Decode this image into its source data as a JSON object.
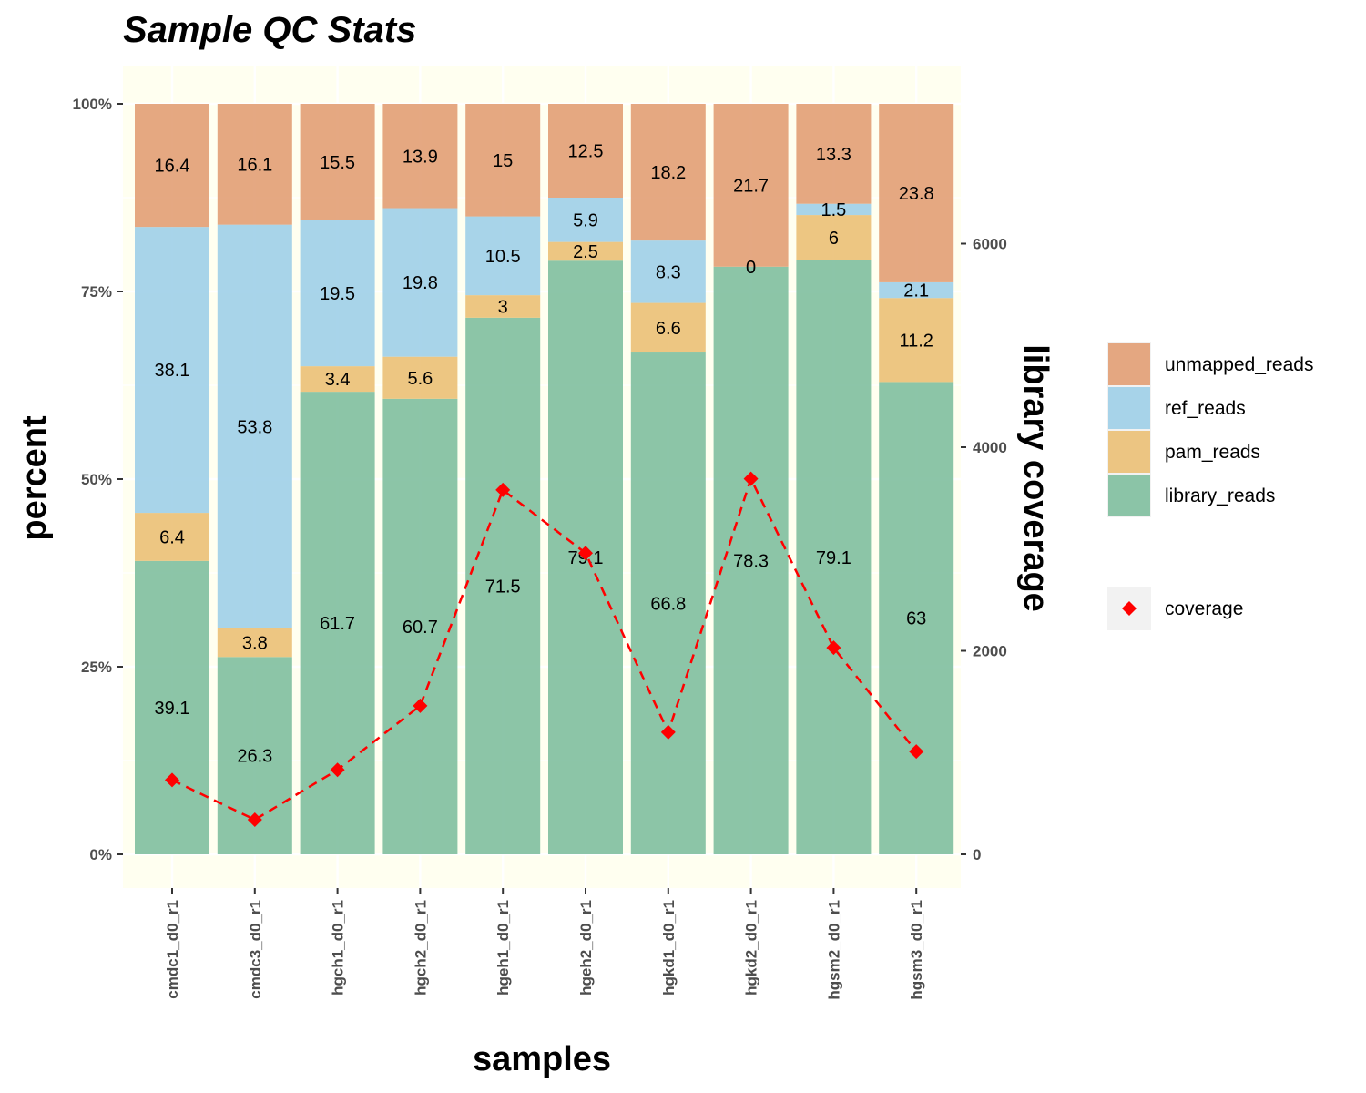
{
  "chart_data": {
    "type": "bar",
    "stacked": true,
    "title": "Sample QC Stats",
    "xlabel": "samples",
    "ylabel": "percent",
    "y2label": "library coverage",
    "ylim": [
      0,
      100
    ],
    "y_ticks": [
      0,
      25,
      50,
      75,
      100
    ],
    "y_tick_labels": [
      "0%",
      "25%",
      "50%",
      "75%",
      "100%"
    ],
    "y2lim": [
      0,
      6800
    ],
    "y2_ticks": [
      0,
      2000,
      4000,
      6000
    ],
    "y2_tick_labels": [
      "0",
      "2000",
      "4000",
      "6000"
    ],
    "panel_background": "#fffff0",
    "categories": [
      "cmdc1_d0_r1",
      "cmdc3_d0_r1",
      "hgch1_d0_r1",
      "hgch2_d0_r1",
      "hgeh1_d0_r1",
      "hgeh2_d0_r1",
      "hgkd1_d0_r1",
      "hgkd2_d0_r1",
      "hgsm2_d0_r1",
      "hgsm3_d0_r1"
    ],
    "series": [
      {
        "name": "library_reads",
        "color": "#7fbf9e",
        "values": [
          39.1,
          26.3,
          61.7,
          60.7,
          71.5,
          79.1,
          66.8,
          78.3,
          79.1,
          63
        ],
        "labels": [
          "39.1",
          "26.3",
          "61.7",
          "60.7",
          "71.5",
          "79.1",
          "66.8",
          "78.3",
          "79.1",
          "63"
        ]
      },
      {
        "name": "pam_reads",
        "color": "#ebc075",
        "values": [
          6.4,
          3.8,
          3.4,
          5.6,
          3,
          2.5,
          6.6,
          0,
          6,
          11.2
        ],
        "labels": [
          "6.4",
          "3.8",
          "3.4",
          "5.6",
          "3",
          "2.5",
          "6.6",
          "0",
          "6",
          "11.2"
        ]
      },
      {
        "name": "ref_reads",
        "color": "#9fcfe8",
        "values": [
          38.1,
          53.8,
          19.5,
          19.8,
          10.5,
          5.9,
          8.3,
          0,
          1.5,
          2.1
        ],
        "labels": [
          "38.1",
          "53.8",
          "19.5",
          "19.8",
          "10.5",
          "5.9",
          "8.3",
          "",
          "1.5",
          "2.1"
        ]
      },
      {
        "name": "unmapped_reads",
        "color": "#e29f74",
        "values": [
          16.4,
          16.1,
          15.5,
          13.9,
          15,
          12.5,
          18.2,
          21.7,
          13.3,
          23.8
        ],
        "labels": [
          "16.4",
          "16.1",
          "15.5",
          "13.9",
          "15",
          "12.5",
          "18.2",
          "21.7",
          "13.3",
          "23.8"
        ]
      }
    ],
    "coverage": {
      "name": "coverage",
      "color": "#ff0000",
      "line_style": "dashed",
      "marker": "diamond",
      "axis": "right",
      "values": [
        730,
        340,
        830,
        1460,
        3580,
        2960,
        1200,
        3690,
        2030,
        1010
      ]
    },
    "legend_order": [
      "unmapped_reads",
      "ref_reads",
      "pam_reads",
      "library_reads"
    ],
    "legend_position": "right"
  }
}
